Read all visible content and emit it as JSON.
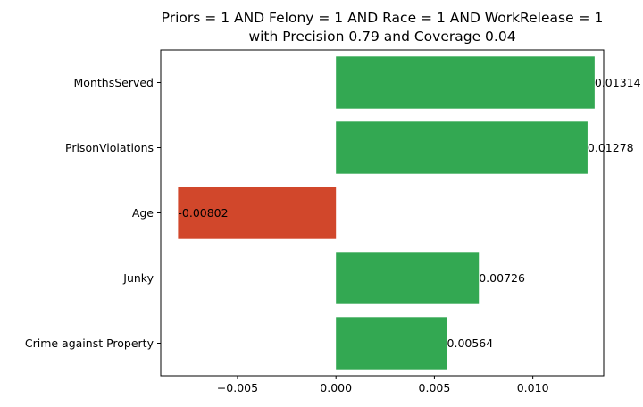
{
  "chart_data": {
    "type": "bar",
    "orientation": "horizontal",
    "title_lines": [
      "Priors = 1 AND Felony = 1 AND Race = 1 AND WorkRelease = 1",
      "with Precision 0.79 and Coverage 0.04"
    ],
    "categories": [
      "MonthsServed",
      "PrisonViolations",
      "Age",
      "Junky",
      "Crime against Property"
    ],
    "values": [
      0.01314,
      0.01278,
      -0.00802,
      0.00726,
      0.00564
    ],
    "value_labels": [
      "0.01314",
      "0.01278",
      "-0.00802",
      "0.00726",
      "0.00564"
    ],
    "xlim": [
      -0.0089,
      0.0136
    ],
    "xticks": [
      -0.005,
      0.0,
      0.005,
      0.01
    ],
    "xtick_labels": [
      "−0.005",
      "0.000",
      "0.005",
      "0.010"
    ],
    "xlabel": "",
    "ylabel": "",
    "grid": false,
    "colors": {
      "positive": "#33a852",
      "negative": "#d1472b"
    }
  }
}
